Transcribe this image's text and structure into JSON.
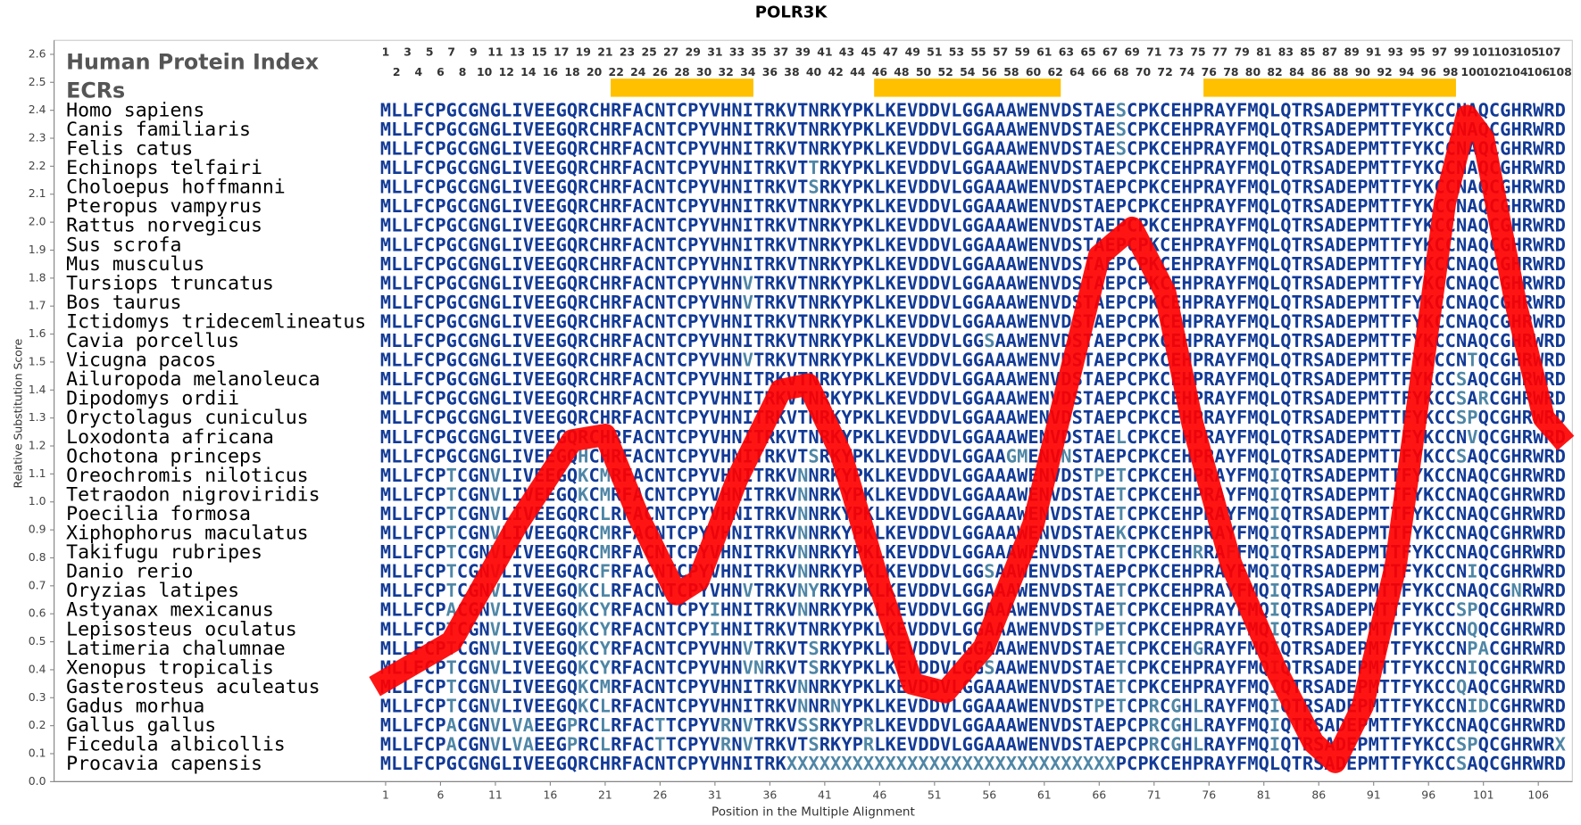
{
  "chart_data": {
    "type": "line",
    "title": "POLR3K",
    "xlabel": "Position in the Multiple Alignment",
    "ylabel": "Relative Substitution Score",
    "header_title": "Human Protein Index",
    "ecr_label": "ECRs",
    "color": "#ff0000",
    "xlim": [
      -29.2,
      109.1
    ],
    "ylim": [
      0,
      2.65
    ],
    "xticks": [
      1,
      6,
      11,
      16,
      21,
      26,
      31,
      36,
      41,
      46,
      51,
      56,
      61,
      66,
      71,
      76,
      81,
      86,
      91,
      96,
      101,
      106
    ],
    "yticks": [
      {
        "value": 0,
        "label": "0.0"
      },
      0.1,
      0.2,
      0.3,
      0.4,
      0.5,
      0.6,
      0.7,
      0.8,
      0.9,
      {
        "value": 1,
        "label": "1.0"
      },
      1.1,
      1.2,
      1.3,
      1.4,
      1.5,
      1.6,
      1.7,
      1.8,
      1.9,
      {
        "value": 2,
        "label": "2.0"
      },
      2.1,
      2.2,
      2.3,
      2.4,
      2.5,
      2.6
    ],
    "x": [
      0,
      7,
      13,
      18,
      21,
      24,
      27.5,
      29.5,
      33,
      37,
      39.5,
      42.5,
      46,
      49,
      52,
      55.5,
      60,
      63.5,
      66,
      69,
      72,
      74.5,
      78,
      82,
      85.5,
      87.5,
      90,
      93,
      95.5,
      97.5,
      99.5,
      101,
      104,
      106.5,
      108.5
    ],
    "values": [
      0.34,
      0.5,
      0.92,
      1.22,
      1.24,
      0.95,
      0.67,
      0.72,
      1.08,
      1.4,
      1.42,
      1.17,
      0.7,
      0.35,
      0.32,
      0.48,
      0.92,
      1.48,
      1.88,
      1.98,
      1.75,
      1.28,
      0.78,
      0.41,
      0.14,
      0.07,
      0.27,
      0.77,
      1.49,
      2.07,
      2.38,
      2.3,
      1.7,
      1.3,
      1.21
    ],
    "index_top": [
      1,
      3,
      5,
      7,
      9,
      11,
      13,
      15,
      17,
      19,
      21,
      23,
      25,
      27,
      29,
      31,
      33,
      35,
      37,
      39,
      41,
      43,
      45,
      47,
      49,
      51,
      53,
      55,
      57,
      59,
      61,
      63,
      65,
      67,
      69,
      71,
      73,
      75,
      77,
      79,
      81,
      83,
      85,
      87,
      89,
      91,
      93,
      95,
      97,
      99,
      101,
      103,
      105,
      107
    ],
    "index_bottom": [
      2,
      4,
      6,
      8,
      10,
      12,
      14,
      16,
      18,
      20,
      22,
      24,
      26,
      28,
      30,
      32,
      34,
      36,
      38,
      40,
      42,
      44,
      46,
      48,
      50,
      52,
      54,
      56,
      58,
      60,
      62,
      64,
      66,
      68,
      70,
      72,
      74,
      76,
      78,
      80,
      82,
      84,
      86,
      88,
      90,
      92,
      94,
      96,
      98,
      100,
      102,
      104,
      106,
      108
    ],
    "ecrs": [
      [
        22,
        34
      ],
      [
        46,
        62
      ],
      [
        76,
        98
      ]
    ],
    "ecr_color": "#ffc000",
    "species": [
      "Homo sapiens",
      "Canis familiaris",
      "Felis catus",
      "Echinops telfairi",
      "Choloepus hoffmanni",
      "Pteropus vampyrus",
      "Rattus norvegicus",
      "Sus scrofa",
      "Mus musculus",
      "Tursiops truncatus",
      "Bos taurus",
      "Ictidomys tridecemlineatus",
      "Cavia porcellus",
      "Vicugna pacos",
      "Ailuropoda melanoleuca",
      "Dipodomys ordii",
      "Oryctolagus cuniculus",
      "Loxodonta africana",
      "Ochotona princeps",
      "Oreochromis niloticus",
      "Tetraodon nigroviridis",
      "Poecilia formosa",
      "Xiphophorus maculatus",
      "Takifugu rubripes",
      "Danio rerio",
      "Oryzias latipes",
      "Astyanax mexicanus",
      "Lepisosteus oculatus",
      "Latimeria chalumnae",
      "Xenopus tropicalis",
      "Gasterosteus aculeatus",
      "Gadus morhua",
      "Gallus gallus",
      "Ficedula albicollis",
      "Procavia capensis"
    ],
    "sequences": [
      "MLLFCPGCGNGLIVEEGQRCHRFACNTCPYVHNITRKVTNRKYPKLKEVDDVLGGAAAWENVDSTAESCPKCEHPRAYFMQLQTRSADEPMTTFYKCCNAQCGHRWRD",
      "MLLFCPGCGNGLIVEEGQRCHRFACNTCPYVHNITRKVTNRKYPKLKEVDDVLGGAAAWENVDSTAESCPKCEHPRAYFMQLQTRSADEPMTTFYKCCNAQCGHRWRD",
      "MLLFCPGCGNGLIVEEGQRCHRFACNTCPYVHNITRKVTNRKYPKLKEVDDVLGGAAAWENVDSTAESCPKCEHPRAYFMQLQTRSADEPMTTFYKCCNAQCGHRWRD",
      "MLLFCPGCGNGLIVEEGQRCHRFACNTCPYVHNITRKVTTRKYPKLKEVDDVLGGAAAWENVDSTAEPCPKCEHPRAYFMQLQTRSADEPMTTFYKCCNAQCGHRWRD",
      "MLLFCPGCGNGLIVEEGQRCHRFACNTCPYVHNITRKVTSRKYPKLKEVDDVLGGAAAWENVDSTAEPCPKCEHPRAYFMQLQTRSADEPMTTFYKCCNAQCGHRWRD",
      "MLLFCPGCGNGLIVEEGQRCHRFACNTCPYVHNITRKVTNRKYPKLKEVDDVLGGAAAWENVDSTAEPCPKCEHPRAYFMQLQTRSADEPMTTFYKCCNAQCGHRWRD",
      "MLLFCPGCGNGLIVEEGQRCHRFACNTCPYVHNITRKVTNRKYPKLKEVDDVLGGAAAWENVDSTAEPCPKCEHPRAYFMQLQTRSADEPMTTFYKCCNAQCGHRWRD",
      "MLLFCPGCGNGLIVEEGQRCHRFACNTCPYVHNITRKVTNRKYPKLKEVDDVLGGAAAWENVDSTAEPCPKCEHPRAYFMQLQTRSADEPMTTFYKCCNAQCGHRWRD",
      "MLLFCPGCGNGLIVEEGQRCHRFACNTCPYVHNITRKVTNRKYPKLKEVDDVLGGAAAWENVDSTAEPCPKCEHPRAYFMQLQTRSADEPMTTFYKCCNAQCGHRWRD",
      "MLLFCPGCGNGLIVEEGQRCHRFACNTCPYVHNVTRKVTNRKYPKLKEVDDVLGGAAAWENVDSTAEPCPKCEHPRAYFMQLQTRSADEPMTTFYKCCNAQCGHRWRD",
      "MLLFCPGCGNGLIVEEGQRCHRFACNTCPYVHNVTRKVTNRKYPKLKEVDDVLGGAAAWENVDSTAEPCPKCEHPRAYFMQLQTRSADEPMTTFYKCCNAQCGHRWRD",
      "MLLFCPGCGNGLIVEEGQRCHRFACNTCPYVHNITRKVTNRKYPKLKEVDDVLGGAAAWENVDSTAEPCPKCEHPRAYFMQLQTRSADEPMTTFYKCCNAQCGHRWRD",
      "MLLFCPGCGNGLIVEEGQRCHRFACNTCPYVHNITRKVTNRKYPKLKEVDDVLGGSAAWENVDSTAEPCPKCEHPRAYFMQLQTRSADEPMTTFYKCCNAQCGHRWRD",
      "MLLFCPGCGNGLIVEEGQRCHRFACNTCPYVHNVTRKVTNRKYPKLKEVDDVLGGAAAWENVDSTAEPCPKCEHPRAYFMQLQTRSADEPMTTFYKCCNTQCGHRWRD",
      "MLLFCPGCGNGLIVEEGQRCHRFACNTCPYVHNITRKVTNRKYPKLKEVDDVLGGAAAWENVDSTAEPCPKCEHPRAYFMQLQTRSADEPMTTFYKCCSAQCGHRWRD",
      "MLLFCPGCGNGLIVEEGQRCHRFACNTCPYVHNITRKVTNRKYPKLKEVDDVLGGAAAWENVDSTAEPCPKCEHPRAYFMQLQTRSADEPMTTFYKCCSARCGHRWRD",
      "MLLFCPGCGNGLIVEEGQRCHRFACNTCPYVHNITRKVTNRKYPKLKEVDDVLGGAAAWENVDSTAEPCPKCEHPRAYFMQLQTRSADEPMTTFYKCCSPQCGHRWRD",
      "MLLFCPGCGNGLIVEEGQRCHRFACNTCPYVHNITRKVTNRKYPKLKEVDDVLGGAAAWENVDSTAELCPKCEHPRAYFMQLQTRSADEPMTTFYKCCNVQCGHRWRD",
      "MLLFCPGCGNGLIVEEGQHCHRFACNTCPYVHNITRKVTSRKYPKLKEVDDVLGGAAGMENVNSTAEPCPKCEHPRAYFMQLQTRSADEPMTTFYKCCSAQCGHRWRD",
      "MLLFCPTCGNVLIVEEGQKCMRFACNTCPYVHNITRKVNNRKYPKLKEVDDVLGGAAAWENVDSTPETCPKCEHPRAYFMQIQTRSADEPMTTFYKCCNAQCGHRWRD",
      "MLLFCPTCGNVLIVEEGQKCMRFACNTCPYVHNITRKVNNRKYPKLKEVDDVLGGAAAWENVDSTAETCPKCEHPRAYFMQIQTRSADEPMTTFYKCCNAQCGHRWRD",
      "MLLFCPTCGNVLIVEEGQRCLRFACNTCPYVHNITRKVNNRKYPKLKEVDDVLGGAAAWENVDSTAETCPKCEHPRAYFMQIQTRSADEPMTTFYKCCNAQCGHRWRD",
      "MLLFCPTCGNVLIVEEGQRCMRFACNTCPYVHNITRKVNNRKYPKLKEVDDVLGGAAAWENVDSTAEKCPKCEHPRAYFMQIQTRSADEPMTTFYKCCNAQCGHRWRD",
      "MLLFCPTCGNVLIVEEGQRCMRFACNTCPYVHNITRKVNNRKYPKLKEVDDVLGGAAAWENVDSTAETCPKCEHRRAFFMQIQTRSADEPMTTFYKCCNAQCGHRWRD",
      "MLLFCPTCGNVLIVEEGQRCFRFACNTCPYVHNITRKVNNRKYPKLKEVDDVLGGSAAWENVDSTAEPCPKCEHPRAYFMQIQTRSADEPMTTFYKCCNIQCGHRWRD",
      "MLLFCPTCGNVLIVEEGQKCLRFACNTCPYVHNVTRKVNYRKYPKLKEVDDVLGGAAAWENVDSTAETCPKCEHPRAYFMQIQTRSADEPMTTFYKCCNAQCGNRWRD",
      "MLLFCPACGNVLIVEEGQKCYRFACNTCPYIHNITRKVNNRKYPKLKEVDDVLGGAAAWENVDSTAETCPKCEHPRAYFMQIQTRSADEPMTTFYKCCSPQCGHRWRD",
      "MLLFCPTCGNVLIVEEGQKCYRFACNTCPYIHNITRKVTNRKYPKLKEVDDVLGGAAAWENVDSTPETCPKCEHPRAYFMQIQTRSADEPMTTFYKCCNQQCGHRWRD",
      "MLLFCPTCGNVLIVEEGQKCYRFACNTCPYVHNVTRKVTSRKYPKLKEVDDVLGGAAAWENVDSTAETCPKCEHGRAYFMQIQTRSADEPMTTFYKCCNPACGHRWRD",
      "MLLFCPTCGNVLIVEEGQKCYRFACNTCPYVHNVNRKVTSRKYPKLKEVDDVLGGSAAWENVDSTAETCPKCEHPRAYFMQIQTRSADEPMTTFYKCCNIQCGHRWRD",
      "MLLFCPTCGNVLIVEEGQKCMRFACNTCPYVHNITRKVNNRKYPKLKEVDDVLGGAAAWENVDSTAETCPKCEHPRAYFMQIQTRSADEPMTTFYKCCQAQCGHRWRD",
      "MLLFCPTCGNVLIVEEGQKCLRFACNTCPYVHNITRKVNNRNYPKLKEVDDVLGGAAAWENVDSTPETCPRCGHLRAYFMQIQTRSADEPMTTFYKCCNIDCGHRWRD",
      "MLLFCPACGNVLVAEEGPRCLRFACTTCPYVRNVTRKVSSRKYPRLKEVDDVLGGAAAWENVDSTAEPCPRCGHLRAYFMQIQTRSADEPMTTFYKCCNAQCGHRWRD",
      "MLLFCPACGNVLVAEEGPRCLRFACTTCPYVRNVTRKVTSRKYPRLKEVDDVLGGAAAWENVDSTAEPCPRCGHLRAYFMQIQTRSADEPMTTFYKCCSPQCGHRWRX",
      "MLLFCPGCGNGLIVEEGQRCHRFACNTCPYVHNITRKXXXXXXXXXXXXXXXXXXXXXXXXXXXXXXPCPKCEHPRAYFMQLQTRSADEPMTTFYKCCSAQCGHRWRD"
    ]
  }
}
